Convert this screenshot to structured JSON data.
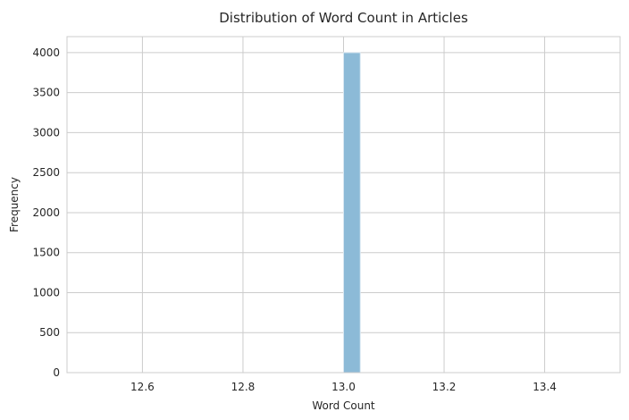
{
  "chart_data": {
    "type": "bar",
    "title": "Distribution of Word Count in Articles",
    "xlabel": "Word Count",
    "ylabel": "Frequency",
    "xlim": [
      12.45,
      13.55
    ],
    "ylim": [
      0,
      4200
    ],
    "x_ticks": [
      12.6,
      12.8,
      13.0,
      13.2,
      13.4
    ],
    "x_tick_labels": [
      "12.6",
      "12.8",
      "13.0",
      "13.2",
      "13.4"
    ],
    "y_ticks": [
      0,
      500,
      1000,
      1500,
      2000,
      2500,
      3000,
      3500,
      4000
    ],
    "y_tick_labels": [
      "0",
      "500",
      "1000",
      "1500",
      "2000",
      "2500",
      "3000",
      "3500",
      "4000"
    ],
    "bins": [
      {
        "x0": 13.0,
        "x1": 13.0333,
        "count": 4000
      }
    ],
    "grid": true,
    "legend": false
  },
  "colors": {
    "bar_fill": "#8cbad7",
    "bar_edge": "#d9e8f2",
    "grid": "#cccccc",
    "text": "#262626",
    "background": "#ffffff"
  }
}
